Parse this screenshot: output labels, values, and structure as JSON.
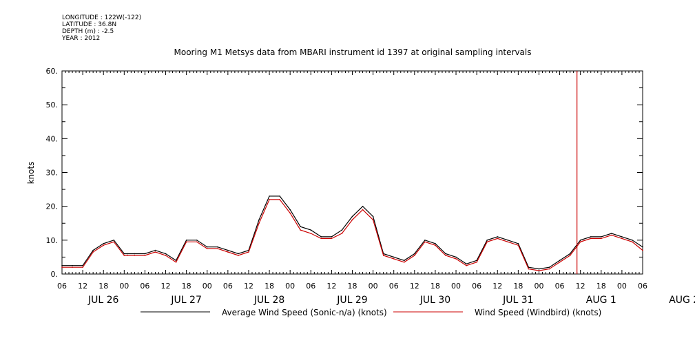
{
  "meta": {
    "longitude": "LONGITUDE : 122W(-122)",
    "latitude": "LATITUDE : 36.8N",
    "depth": "DEPTH (m) : -2.5",
    "year": "YEAR : 2012"
  },
  "chart_data": {
    "type": "line",
    "title": "Mooring M1 Metsys data from MBARI instrument id 1397 at original sampling intervals",
    "ylabel": "knots",
    "xlabel": "",
    "ylim": [
      0,
      60
    ],
    "y_ticks": [
      "0.",
      "10.",
      "20.",
      "30.",
      "40.",
      "50.",
      "60."
    ],
    "x_range_hours": [
      0,
      168
    ],
    "x_hour_ticks": [
      "06",
      "12",
      "18",
      "00",
      "06",
      "12",
      "18",
      "00",
      "06",
      "12",
      "18",
      "00",
      "06",
      "12",
      "18",
      "00",
      "06",
      "12",
      "18",
      "00",
      "06",
      "12",
      "18",
      "00",
      "06",
      "12",
      "18",
      "00",
      "06"
    ],
    "x_day_labels": [
      "JUL 26",
      "JUL 27",
      "JUL 28",
      "JUL 29",
      "JUL 30",
      "JUL 31",
      "AUG  1",
      "AUG  2"
    ],
    "grid": false,
    "legend_position": "bottom",
    "series": [
      {
        "name": "Average Wind Speed (Sonic-n/a) (knots)",
        "color": "#000000",
        "x": [
          0,
          3,
          6,
          9,
          12,
          15,
          18,
          19,
          21,
          24,
          27,
          30,
          33,
          36,
          39,
          42,
          45,
          48,
          51,
          54,
          57,
          60,
          63,
          66,
          69,
          72,
          75,
          78,
          81,
          84,
          87,
          90,
          93,
          96,
          99,
          102,
          105,
          108,
          111,
          114,
          117,
          120,
          123,
          126,
          129,
          132,
          135,
          138,
          141,
          144,
          147,
          150,
          153,
          156,
          159,
          162,
          165,
          168
        ],
        "values": [
          2.5,
          2.5,
          2.5,
          7,
          9,
          10,
          6,
          6,
          6,
          6,
          7,
          6,
          4,
          10,
          10,
          8,
          8,
          7,
          6,
          7,
          16,
          23,
          23,
          19,
          14,
          13,
          11,
          11,
          13,
          17,
          20,
          17,
          6,
          5,
          4,
          6,
          10,
          9,
          6,
          5,
          3,
          4,
          10,
          11,
          10,
          9,
          2,
          1.5,
          2,
          4,
          6,
          10,
          11,
          11,
          12,
          11,
          10,
          8
        ]
      },
      {
        "name": "Wind Speed (Windbird) (knots)",
        "color": "#cc0000",
        "x": [
          0,
          3,
          6,
          9,
          12,
          15,
          18,
          19,
          21,
          24,
          27,
          30,
          33,
          36,
          39,
          42,
          45,
          48,
          51,
          54,
          57,
          60,
          63,
          66,
          69,
          72,
          75,
          78,
          81,
          84,
          87,
          90,
          93,
          96,
          99,
          102,
          105,
          108,
          111,
          114,
          117,
          120,
          123,
          126,
          129,
          132,
          135,
          138,
          141,
          144,
          147,
          150,
          153,
          156,
          159,
          162,
          165,
          168
        ],
        "values": [
          2,
          2,
          2,
          6.5,
          8.5,
          9.5,
          5.5,
          5.5,
          5.5,
          5.5,
          6.5,
          5.5,
          3.5,
          9.5,
          9.5,
          7.5,
          7.5,
          6.5,
          5.5,
          6.5,
          15,
          22,
          22,
          18,
          13,
          12,
          10.5,
          10.5,
          12,
          16,
          19,
          16,
          5.5,
          4.5,
          3.5,
          5.5,
          9.5,
          8.5,
          5.5,
          4.5,
          2.5,
          3.5,
          9.5,
          10.5,
          9.5,
          8.5,
          1.5,
          1,
          1.5,
          3.5,
          5.5,
          9.5,
          10.5,
          10.5,
          11.5,
          10.5,
          9.5,
          7
        ],
        "spike": {
          "x": 149,
          "value": 60
        }
      }
    ]
  }
}
